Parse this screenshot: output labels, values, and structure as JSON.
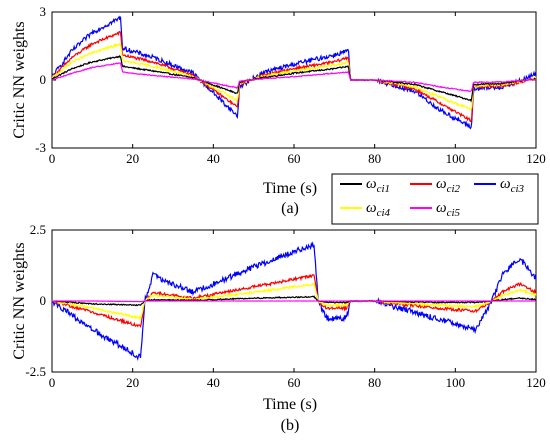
{
  "chart_data": [
    {
      "type": "line",
      "caption": "(a)",
      "xlabel": "Time (s)",
      "ylabel": "Critic NN   weights",
      "xlim": [
        0,
        120
      ],
      "ylim": [
        -3,
        3
      ],
      "x_ticks": [
        0,
        20,
        40,
        60,
        80,
        100,
        120
      ],
      "x_tick_labels": [
        "0",
        "20",
        "40",
        "60",
        "80",
        "100",
        "120"
      ],
      "y_ticks": [
        -3,
        0,
        3
      ],
      "y_tick_labels": [
        "-3",
        "0",
        "3"
      ],
      "grid": false,
      "series": [
        {
          "name": "ω_ci1",
          "color": "#000000",
          "noise": 0.03,
          "x": [
            0,
            5,
            10,
            17,
            17.5,
            25,
            35,
            46,
            46.5,
            52,
            60,
            70,
            73.5,
            74,
            80,
            90,
            96,
            104,
            104.5,
            112,
            118,
            120
          ],
          "y": [
            0.05,
            0.5,
            0.8,
            1.05,
            0.6,
            0.4,
            0.1,
            -0.6,
            -0.1,
            0.1,
            0.3,
            0.5,
            0.6,
            0,
            0,
            -0.2,
            -0.5,
            -0.9,
            -0.2,
            -0.15,
            0,
            0.05
          ]
        },
        {
          "name": "ω_ci2",
          "color": "#ff0000",
          "noise": 0.06,
          "x": [
            0,
            5,
            10,
            17,
            17.5,
            25,
            35,
            46,
            46.5,
            52,
            60,
            70,
            73.5,
            74,
            80,
            90,
            96,
            104,
            104.5,
            112,
            118,
            120
          ],
          "y": [
            0.1,
            1.0,
            1.6,
            2.1,
            1.1,
            0.8,
            0.2,
            -1.2,
            -0.2,
            0.2,
            0.5,
            0.8,
            1.0,
            0,
            0,
            -0.4,
            -1.0,
            -1.8,
            -0.3,
            -0.25,
            0,
            0.1
          ]
        },
        {
          "name": "ω_ci3",
          "color": "#0000ff",
          "noise": 0.1,
          "x": [
            0,
            5,
            10,
            17,
            17.5,
            25,
            35,
            46,
            46.5,
            52,
            60,
            70,
            73.5,
            74,
            80,
            90,
            96,
            104,
            104.5,
            112,
            118,
            120
          ],
          "y": [
            0.15,
            1.3,
            2.1,
            2.75,
            1.4,
            1.0,
            0.3,
            -1.6,
            -0.3,
            0.3,
            0.7,
            1.1,
            1.3,
            0,
            0,
            -0.5,
            -1.3,
            -2.1,
            -0.4,
            -0.3,
            0.1,
            0.3
          ]
        },
        {
          "name": "ω_ci4",
          "color": "#ffff00",
          "noise": 0.05,
          "x": [
            0,
            5,
            10,
            17,
            17.5,
            25,
            35,
            46,
            46.5,
            52,
            60,
            70,
            73.5,
            74,
            80,
            90,
            96,
            104,
            104.5,
            112,
            118,
            120
          ],
          "y": [
            0.08,
            0.8,
            1.2,
            1.6,
            0.85,
            0.6,
            0.15,
            -0.9,
            -0.15,
            0.15,
            0.4,
            0.65,
            0.8,
            0,
            0,
            -0.3,
            -0.75,
            -1.3,
            -0.25,
            -0.2,
            0,
            0.08
          ]
        },
        {
          "name": "ω_ci5",
          "color": "#ff00ff",
          "noise": 0.02,
          "x": [
            0,
            5,
            10,
            17,
            17.5,
            25,
            35,
            46,
            46.5,
            52,
            60,
            70,
            73.5,
            74,
            80,
            90,
            96,
            104,
            104.5,
            112,
            118,
            120
          ],
          "y": [
            0.0,
            0.3,
            0.55,
            0.75,
            0.35,
            0.2,
            0.05,
            -0.35,
            -0.05,
            0.05,
            0.15,
            0.3,
            0.35,
            0,
            0,
            -0.1,
            -0.3,
            -0.5,
            -0.1,
            -0.08,
            0,
            0.02
          ]
        }
      ]
    },
    {
      "type": "line",
      "caption": "(b)",
      "xlabel": "Time (s)",
      "ylabel": "Critic NN   weights",
      "xlim": [
        0,
        120
      ],
      "ylim": [
        -2.5,
        2.5
      ],
      "x_ticks": [
        0,
        20,
        40,
        60,
        80,
        100,
        120
      ],
      "x_tick_labels": [
        "0",
        "20",
        "40",
        "60",
        "80",
        "100",
        "120"
      ],
      "y_ticks": [
        -2.5,
        0,
        2.5
      ],
      "y_tick_labels": [
        "-2.5",
        "0",
        "2.5"
      ],
      "grid": false,
      "series": [
        {
          "name": "ω_ci1",
          "color": "#000000",
          "noise": 0.02,
          "x": [
            0,
            10,
            22,
            23,
            25,
            35,
            50,
            65,
            66,
            68,
            73,
            74,
            80,
            95,
            105,
            109,
            112,
            116,
            120
          ],
          "y": [
            0,
            -0.1,
            -0.15,
            0,
            0.05,
            0.02,
            0.1,
            0.15,
            0,
            -0.05,
            -0.05,
            0,
            0,
            -0.05,
            -0.05,
            0,
            0.05,
            0.1,
            0.05
          ]
        },
        {
          "name": "ω_ci2",
          "color": "#ff0000",
          "noise": 0.05,
          "x": [
            0,
            10,
            22,
            23,
            25,
            35,
            50,
            65,
            66,
            68,
            73,
            74,
            80,
            95,
            105,
            109,
            112,
            116,
            120
          ],
          "y": [
            0,
            -0.4,
            -0.9,
            0,
            0.3,
            0.1,
            0.5,
            0.9,
            0,
            -0.25,
            -0.25,
            0,
            0,
            -0.25,
            -0.35,
            0,
            0.35,
            0.6,
            0.3
          ]
        },
        {
          "name": "ω_ci3",
          "color": "#0000ff",
          "noise": 0.1,
          "x": [
            0,
            10,
            22,
            23,
            25,
            35,
            50,
            65,
            66,
            68,
            73,
            74,
            80,
            95,
            105,
            109,
            112,
            116,
            120
          ],
          "y": [
            0,
            -1.0,
            -2.0,
            0,
            0.9,
            0.3,
            1.2,
            2.0,
            0,
            -0.6,
            -0.6,
            0,
            0,
            -0.6,
            -1.0,
            0,
            1.0,
            1.5,
            0.8
          ]
        },
        {
          "name": "ω_ci4",
          "color": "#ffff00",
          "noise": 0.04,
          "x": [
            0,
            10,
            22,
            23,
            25,
            35,
            50,
            65,
            66,
            68,
            73,
            74,
            80,
            95,
            105,
            109,
            112,
            116,
            120
          ],
          "y": [
            0,
            -0.25,
            -0.6,
            0,
            0.2,
            0.06,
            0.3,
            0.6,
            0,
            -0.15,
            -0.15,
            0,
            0,
            -0.15,
            -0.2,
            0,
            0.2,
            0.4,
            0.2
          ]
        },
        {
          "name": "ω_ci5",
          "color": "#ff00ff",
          "noise": 0.01,
          "x": [
            0,
            10,
            22,
            23,
            25,
            35,
            50,
            65,
            66,
            68,
            73,
            74,
            80,
            95,
            105,
            109,
            112,
            116,
            120
          ],
          "y": [
            0,
            0,
            -0.02,
            0,
            0,
            0,
            0,
            0,
            0,
            0,
            0,
            0,
            0,
            0,
            0,
            0,
            0,
            0,
            0
          ]
        }
      ]
    }
  ],
  "legend": {
    "placement": "between-panels-right",
    "entries": [
      {
        "symbol": "ω",
        "sub": "ci1",
        "color": "#000000"
      },
      {
        "symbol": "ω",
        "sub": "ci2",
        "color": "#ff0000"
      },
      {
        "symbol": "ω",
        "sub": "ci3",
        "color": "#0000ff"
      },
      {
        "symbol": "ω",
        "sub": "ci4",
        "color": "#ffff00"
      },
      {
        "symbol": "ω",
        "sub": "ci5",
        "color": "#ff00ff"
      }
    ]
  }
}
